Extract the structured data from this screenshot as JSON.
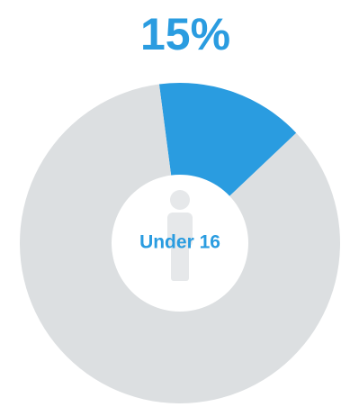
{
  "chart_data": {
    "type": "donut",
    "values": [
      15,
      85
    ],
    "value_labels": [
      "15%",
      null
    ],
    "colors": [
      "#2a9ce0",
      "#dcdfe1"
    ],
    "center_label": "Under 16",
    "label_color": "#2a9ce0"
  }
}
